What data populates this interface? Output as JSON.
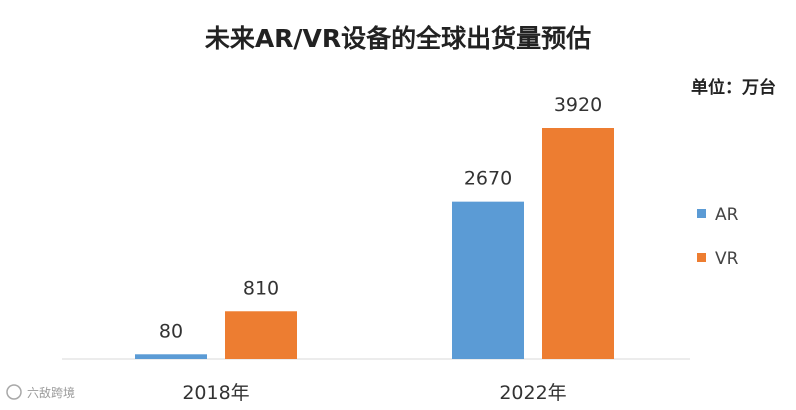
{
  "watermark": "六敌跨境",
  "chart_data": {
    "type": "bar",
    "title": "未来AR/VR设备的全球出货量预估",
    "unit_label": "单位：万台",
    "categories": [
      "2018年",
      "2022年"
    ],
    "series": [
      {
        "name": "AR",
        "values": [
          80,
          2670
        ],
        "color": "#5B9BD5"
      },
      {
        "name": "VR",
        "values": [
          810,
          3920
        ],
        "color": "#ED7D31"
      }
    ],
    "ylim": [
      0,
      3920
    ],
    "grid": false,
    "legend_position": "right"
  }
}
